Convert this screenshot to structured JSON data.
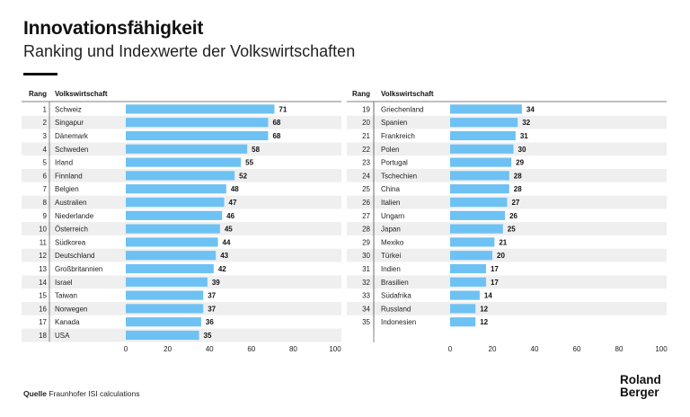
{
  "header": {
    "title": "Innovationsfähigkeit",
    "subtitle": "Ranking und Indexwerte der Volkswirtschaften"
  },
  "footer": {
    "source_label": "Quelle",
    "source_text": "Fraunhofer ISI calculations",
    "logo_line1": "Roland",
    "logo_line2": "Berger"
  },
  "colors": {
    "bar": "#6ec1f3",
    "row_shade": "#efefef",
    "text": "#111111"
  },
  "chart_data": {
    "type": "bar",
    "orientation": "horizontal",
    "column_headers": {
      "rank": "Rang",
      "country": "Volkswirtschaft"
    },
    "xlim": [
      0,
      100
    ],
    "xticks": [
      0,
      20,
      40,
      60,
      80,
      100
    ],
    "grid": false,
    "panels": [
      {
        "ranks": [
          1,
          2,
          3,
          4,
          5,
          6,
          7,
          8,
          9,
          10,
          11,
          12,
          13,
          14,
          15,
          16,
          17,
          18
        ],
        "categories": [
          "Schweiz",
          "Singapur",
          "Dänemark",
          "Schweden",
          "Irland",
          "Finnland",
          "Belgien",
          "Australien",
          "Niederlande",
          "Österreich",
          "Südkorea",
          "Deutschland",
          "Großbritannien",
          "Israel",
          "Taiwan",
          "Norwegen",
          "Kanada",
          "USA"
        ],
        "values": [
          71,
          68,
          68,
          58,
          55,
          52,
          48,
          47,
          46,
          45,
          44,
          43,
          42,
          39,
          37,
          37,
          36,
          35
        ]
      },
      {
        "ranks": [
          19,
          20,
          21,
          22,
          23,
          24,
          25,
          26,
          27,
          28,
          29,
          30,
          31,
          32,
          33,
          34,
          35
        ],
        "categories": [
          "Griechenland",
          "Spanien",
          "Frankreich",
          "Polen",
          "Portugal",
          "Tschechien",
          "China",
          "Italien",
          "Ungarn",
          "Japan",
          "Mexiko",
          "Türkei",
          "Indien",
          "Brasilien",
          "Südafrika",
          "Russland",
          "Indonesien"
        ],
        "values": [
          34,
          32,
          31,
          30,
          29,
          28,
          28,
          27,
          26,
          25,
          21,
          20,
          17,
          17,
          14,
          12,
          12
        ]
      }
    ]
  }
}
